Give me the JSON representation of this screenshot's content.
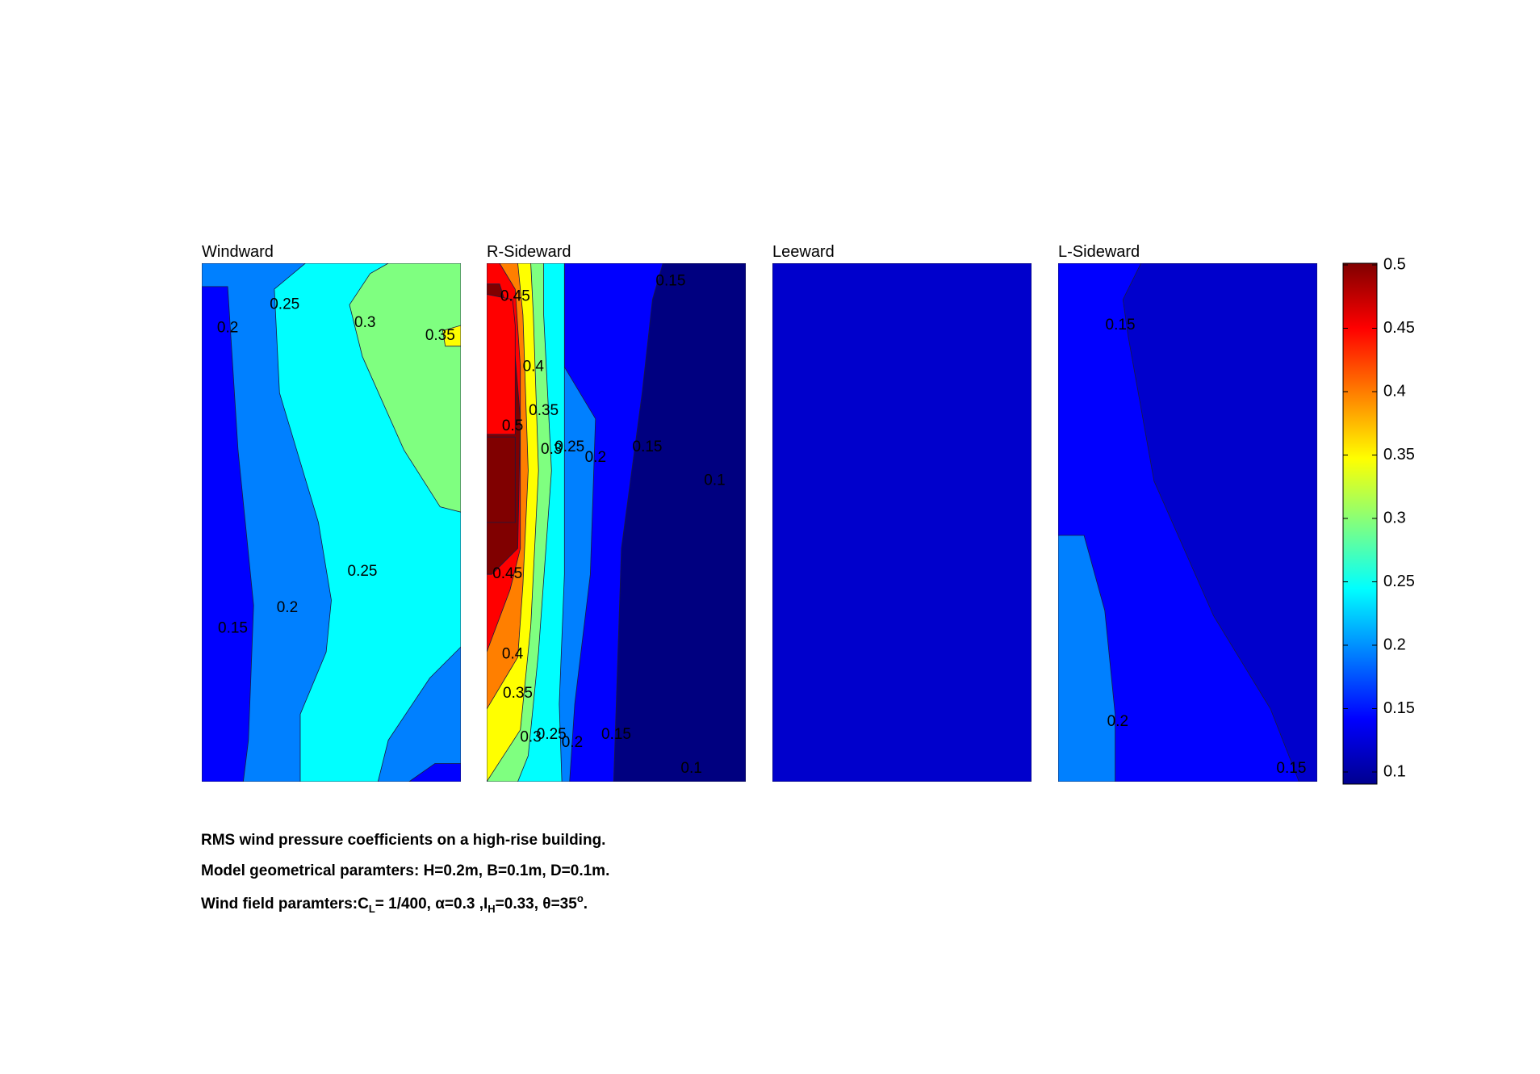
{
  "chart_data": {
    "type": "contour",
    "colormap": "jet",
    "colorbar": {
      "range": [
        0.1,
        0.5
      ],
      "ticks": [
        "0.1",
        "0.15",
        "0.2",
        "0.25",
        "0.3",
        "0.35",
        "0.4",
        "0.45",
        "0.5"
      ]
    },
    "panels": [
      {
        "title": "Windward",
        "regions": [
          {
            "level": 0.25,
            "points": [
              [
                0,
                0
              ],
              [
                1,
                0
              ],
              [
                1,
                1
              ],
              [
                0,
                1
              ]
            ]
          },
          {
            "level": 0.2,
            "points": [
              [
                0,
                0
              ],
              [
                0.4,
                0
              ],
              [
                0.28,
                0.05
              ],
              [
                0.3,
                0.25
              ],
              [
                0.45,
                0.5
              ],
              [
                0.5,
                0.65
              ],
              [
                0.48,
                0.75
              ],
              [
                0.38,
                0.87
              ],
              [
                0.38,
                1
              ],
              [
                0,
                1
              ]
            ]
          },
          {
            "level": 0.2,
            "points": [
              [
                1,
                0.74
              ],
              [
                0.88,
                0.8
              ],
              [
                0.72,
                0.92
              ],
              [
                0.68,
                1
              ],
              [
                1,
                1
              ]
            ]
          },
          {
            "level": 0.15,
            "points": [
              [
                0,
                0.045
              ],
              [
                0.1,
                0.045
              ],
              [
                0.14,
                0.36
              ],
              [
                0.2,
                0.66
              ],
              [
                0.18,
                0.92
              ],
              [
                0.16,
                1
              ],
              [
                0,
                1
              ]
            ]
          },
          {
            "level": 0.15,
            "points": [
              [
                1,
                0.965
              ],
              [
                0.9,
                0.965
              ],
              [
                0.8,
                1
              ],
              [
                1,
                1
              ]
            ]
          },
          {
            "level": 0.3,
            "points": [
              [
                0.72,
                0
              ],
              [
                1,
                0
              ],
              [
                1,
                0.48
              ],
              [
                0.92,
                0.47
              ],
              [
                0.78,
                0.36
              ],
              [
                0.62,
                0.18
              ],
              [
                0.57,
                0.08
              ],
              [
                0.65,
                0.02
              ]
            ]
          },
          {
            "level": 0.35,
            "points": [
              [
                1,
                0.12
              ],
              [
                0.93,
                0.13
              ],
              [
                0.94,
                0.16
              ],
              [
                1,
                0.16
              ]
            ]
          }
        ],
        "labels": [
          {
            "text": "0.25",
            "x": 0.32,
            "y": 0.08
          },
          {
            "text": "0.2",
            "x": 0.1,
            "y": 0.125
          },
          {
            "text": "0.3",
            "x": 0.63,
            "y": 0.115
          },
          {
            "text": "0.35",
            "x": 0.92,
            "y": 0.14
          },
          {
            "text": "0.25",
            "x": 0.62,
            "y": 0.595
          },
          {
            "text": "0.2",
            "x": 0.33,
            "y": 0.665
          },
          {
            "text": "0.15",
            "x": 0.12,
            "y": 0.705
          }
        ]
      },
      {
        "title": "R-Sideward",
        "regions": [
          {
            "level": 0.15,
            "points": [
              [
                0,
                0
              ],
              [
                1,
                0
              ],
              [
                1,
                1
              ],
              [
                0,
                1
              ]
            ]
          },
          {
            "level": 0.1,
            "points": [
              [
                0.68,
                0
              ],
              [
                1,
                0
              ],
              [
                1,
                1
              ],
              [
                0.49,
                1
              ],
              [
                0.52,
                0.55
              ],
              [
                0.6,
                0.25
              ],
              [
                0.64,
                0.07
              ]
            ]
          },
          {
            "level": 0.2,
            "points": [
              [
                0,
                0
              ],
              [
                0.3,
                0
              ],
              [
                0.3,
                0.2
              ],
              [
                0.42,
                0.3
              ],
              [
                0.4,
                0.6
              ],
              [
                0.34,
                0.85
              ],
              [
                0.32,
                1
              ],
              [
                0,
                1
              ]
            ]
          },
          {
            "level": 0.25,
            "points": [
              [
                0,
                0
              ],
              [
                0.3,
                0
              ],
              [
                0.3,
                0.2
              ],
              [
                0.3,
                0.6
              ],
              [
                0.28,
                0.85
              ],
              [
                0.29,
                1
              ],
              [
                0,
                1
              ]
            ]
          },
          {
            "level": 0.3,
            "points": [
              [
                0,
                0
              ],
              [
                0.22,
                0
              ],
              [
                0.22,
                0.1
              ],
              [
                0.25,
                0.4
              ],
              [
                0.2,
                0.75
              ],
              [
                0.16,
                0.95
              ],
              [
                0.12,
                1
              ],
              [
                0,
                1
              ]
            ]
          },
          {
            "level": 0.35,
            "points": [
              [
                0,
                0
              ],
              [
                0.17,
                0
              ],
              [
                0.18,
                0.1
              ],
              [
                0.2,
                0.4
              ],
              [
                0.17,
                0.7
              ],
              [
                0.13,
                0.9
              ],
              [
                0.0,
                1
              ]
            ]
          },
          {
            "level": 0.4,
            "points": [
              [
                0,
                0
              ],
              [
                0.12,
                0
              ],
              [
                0.14,
                0.1
              ],
              [
                0.16,
                0.4
              ],
              [
                0.14,
                0.62
              ],
              [
                0.12,
                0.76
              ],
              [
                0,
                0.86
              ]
            ]
          },
          {
            "level": 0.45,
            "points": [
              [
                0,
                0
              ],
              [
                0.05,
                0
              ],
              [
                0.11,
                0.05
              ],
              [
                0.13,
                0.2
              ],
              [
                0.13,
                0.55
              ],
              [
                0.09,
                0.63
              ],
              [
                0,
                0.75
              ]
            ]
          },
          {
            "level": 0.5,
            "points": [
              [
                0,
                0.04
              ],
              [
                0.05,
                0.04
              ],
              [
                0.1,
                0.12
              ],
              [
                0.13,
                0.3
              ],
              [
                0.12,
                0.55
              ],
              [
                0.02,
                0.6
              ],
              [
                0,
                0.6
              ]
            ]
          },
          {
            "level": 0.45,
            "points": [
              [
                0,
                0.06
              ],
              [
                0.1,
                0.07
              ],
              [
                0.11,
                0.12
              ],
              [
                0.11,
                0.33
              ],
              [
                0,
                0.33
              ]
            ]
          },
          {
            "level": 0.5,
            "points": [
              [
                0,
                0.335
              ],
              [
                0.11,
                0.335
              ],
              [
                0.11,
                0.5
              ],
              [
                0,
                0.5
              ]
            ]
          }
        ],
        "labels": [
          {
            "text": "0.15",
            "x": 0.71,
            "y": 0.035
          },
          {
            "text": "0.45",
            "x": 0.11,
            "y": 0.065
          },
          {
            "text": "0.4",
            "x": 0.18,
            "y": 0.2
          },
          {
            "text": "0.35",
            "x": 0.22,
            "y": 0.285
          },
          {
            "text": "0.5",
            "x": 0.1,
            "y": 0.315
          },
          {
            "text": "0.3",
            "x": 0.25,
            "y": 0.36
          },
          {
            "text": "0.25",
            "x": 0.32,
            "y": 0.355
          },
          {
            "text": "0.2",
            "x": 0.42,
            "y": 0.375
          },
          {
            "text": "0.15",
            "x": 0.62,
            "y": 0.355
          },
          {
            "text": "0.1",
            "x": 0.88,
            "y": 0.42
          },
          {
            "text": "0.45",
            "x": 0.08,
            "y": 0.6
          },
          {
            "text": "0.4",
            "x": 0.1,
            "y": 0.755
          },
          {
            "text": "0.35",
            "x": 0.12,
            "y": 0.83
          },
          {
            "text": "0.3",
            "x": 0.17,
            "y": 0.915
          },
          {
            "text": "0.25",
            "x": 0.25,
            "y": 0.91
          },
          {
            "text": "0.2",
            "x": 0.33,
            "y": 0.925
          },
          {
            "text": "0.15",
            "x": 0.5,
            "y": 0.91
          },
          {
            "text": "0.1",
            "x": 0.79,
            "y": 0.975
          }
        ]
      },
      {
        "title": "Leeward",
        "regions": [
          {
            "level": 0.13,
            "points": [
              [
                0,
                0
              ],
              [
                1,
                0
              ],
              [
                1,
                1
              ],
              [
                0,
                1
              ]
            ]
          }
        ],
        "labels": []
      },
      {
        "title": "L-Sideward",
        "regions": [
          {
            "level": 0.15,
            "points": [
              [
                0,
                0
              ],
              [
                1,
                0
              ],
              [
                1,
                1
              ],
              [
                0,
                1
              ]
            ]
          },
          {
            "level": 0.13,
            "points": [
              [
                0.32,
                0
              ],
              [
                1,
                0
              ],
              [
                1,
                1
              ],
              [
                0.93,
                1
              ],
              [
                0.82,
                0.86
              ],
              [
                0.6,
                0.68
              ],
              [
                0.37,
                0.42
              ],
              [
                0.27,
                0.14
              ],
              [
                0.25,
                0.07
              ]
            ]
          },
          {
            "level": 0.2,
            "points": [
              [
                0,
                0.525
              ],
              [
                0.1,
                0.525
              ],
              [
                0.18,
                0.67
              ],
              [
                0.22,
                0.87
              ],
              [
                0.22,
                1
              ],
              [
                0,
                1
              ]
            ]
          }
        ],
        "labels": [
          {
            "text": "0.15",
            "x": 0.24,
            "y": 0.12
          },
          {
            "text": "0.2",
            "x": 0.23,
            "y": 0.885
          },
          {
            "text": "0.15",
            "x": 0.9,
            "y": 0.975
          }
        ]
      }
    ]
  },
  "caption": {
    "line1": "RMS wind pressure coefficients on a high-rise building.",
    "line2": "Model geometrical paramters: H=0.2m, B=0.1m, D=0.1m.",
    "line3": {
      "a": "Wind field paramters:C",
      "a_sub": "L",
      "b": "= 1/400, α=0.3 ,I",
      "b_sub": "H",
      "c": "=0.33, θ=35",
      "c_sup": "o",
      "d": "."
    }
  }
}
